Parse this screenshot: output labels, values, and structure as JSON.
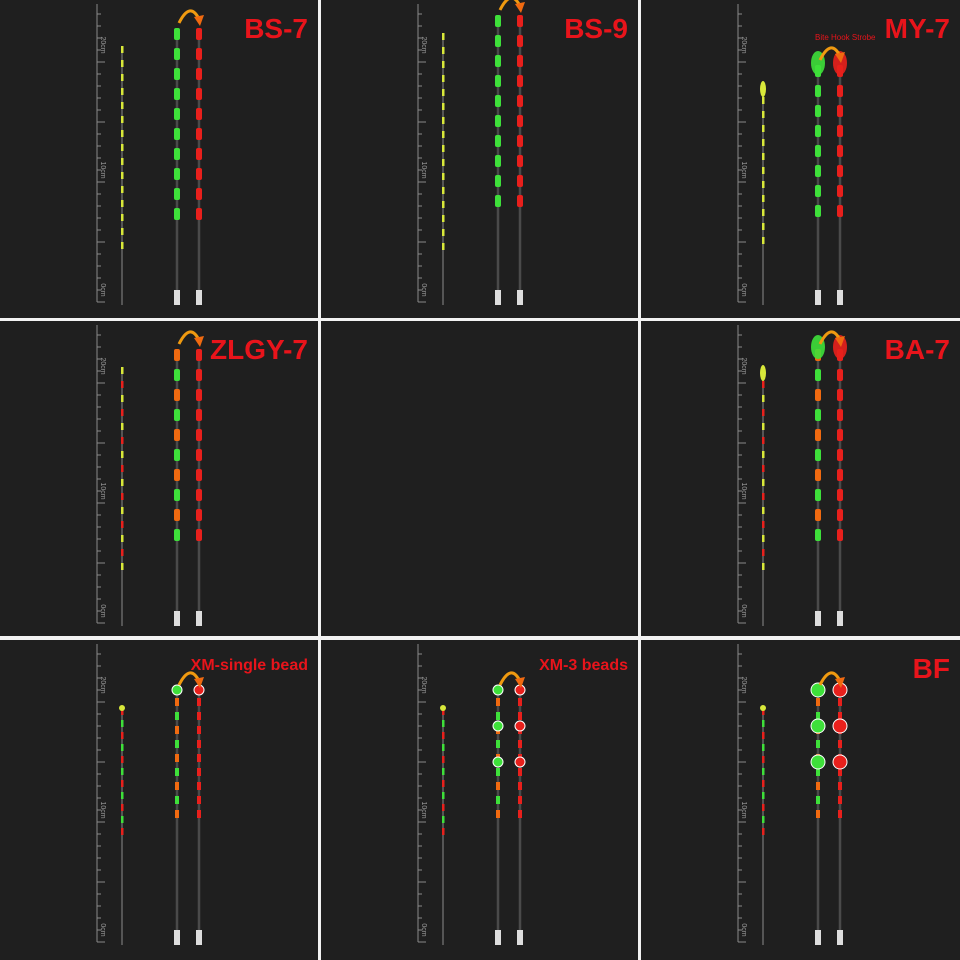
{
  "panels": [
    {
      "title": "BS-7"
    },
    {
      "title": "BS-9"
    },
    {
      "title": "MY-7",
      "annotation": "Bite Hook Strobe"
    },
    {
      "title": "ZLGY-7"
    },
    null,
    {
      "title": "BA-7"
    },
    {
      "title": "XM-single bead"
    },
    {
      "title": "XM-3 beads"
    },
    {
      "title": "BF"
    }
  ],
  "ruler": {
    "labels": [
      "20cm",
      "10cm",
      "0cm"
    ]
  }
}
